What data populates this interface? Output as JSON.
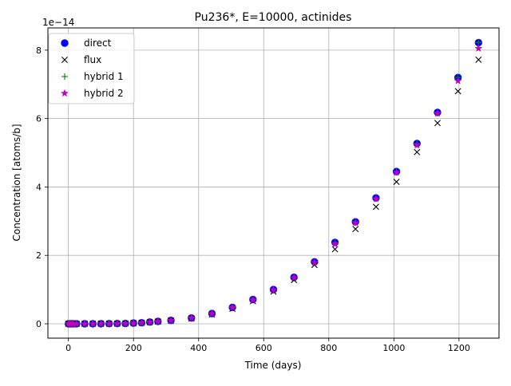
{
  "chart_data": {
    "type": "scatter",
    "title": "Pu236*, E=10000, actinides",
    "xlabel": "Time (days)",
    "ylabel": "Concentration [atoms/b]",
    "y_offset_label": "1e−14",
    "y_scale_exponent": -14,
    "xlim": [
      -63,
      1323
    ],
    "ylim": [
      -0.42,
      8.65
    ],
    "grid": true,
    "legend_position": "upper-left",
    "xticks": [
      0,
      200,
      400,
      600,
      800,
      1000,
      1200
    ],
    "xtick_labels": [
      "0",
      "200",
      "400",
      "600",
      "800",
      "1000",
      "1200"
    ],
    "yticks": [
      0,
      2,
      4,
      6,
      8
    ],
    "ytick_labels": [
      "0",
      "2",
      "4",
      "6",
      "8"
    ],
    "x": [
      0,
      5,
      10,
      15,
      25,
      50,
      75,
      100,
      125,
      150,
      175,
      200,
      225,
      250,
      275,
      315,
      378,
      441,
      504,
      567,
      630,
      693,
      756,
      819,
      882,
      945,
      1008,
      1071,
      1134,
      1197,
      1260
    ],
    "series": [
      {
        "name": "direct",
        "marker": "circle",
        "color": "#0000ff",
        "values": [
          0,
          0,
          0,
          0,
          0,
          0,
          0.001,
          0.002,
          0.003,
          0.006,
          0.01,
          0.02,
          0.03,
          0.05,
          0.07,
          0.1,
          0.17,
          0.3,
          0.48,
          0.71,
          1.0,
          1.36,
          1.81,
          2.38,
          2.98,
          3.68,
          4.45,
          5.27,
          6.18,
          7.2,
          8.22
        ]
      },
      {
        "name": "flux",
        "marker": "x",
        "color": "#000000",
        "values": [
          0,
          0,
          0,
          0,
          0,
          0,
          0.001,
          0.002,
          0.003,
          0.005,
          0.009,
          0.018,
          0.027,
          0.045,
          0.065,
          0.09,
          0.15,
          0.27,
          0.44,
          0.66,
          0.94,
          1.28,
          1.72,
          2.18,
          2.77,
          3.42,
          4.15,
          5.02,
          5.87,
          6.8,
          7.72
        ]
      },
      {
        "name": "hybrid 1",
        "marker": "plus",
        "color": "#008000",
        "values": [
          0,
          0,
          0,
          0,
          0,
          0,
          0.001,
          0.002,
          0.003,
          0.006,
          0.01,
          0.02,
          0.03,
          0.05,
          0.07,
          0.1,
          0.17,
          0.3,
          0.48,
          0.71,
          1.0,
          1.36,
          1.81,
          2.38,
          2.98,
          3.68,
          4.45,
          5.27,
          6.18,
          7.2,
          8.22
        ]
      },
      {
        "name": "hybrid 2",
        "marker": "star",
        "color": "#bf00bf",
        "values": [
          0,
          0,
          0,
          0,
          0,
          0,
          0.001,
          0.002,
          0.003,
          0.006,
          0.01,
          0.02,
          0.03,
          0.05,
          0.07,
          0.1,
          0.17,
          0.3,
          0.48,
          0.7,
          0.99,
          1.35,
          1.79,
          2.33,
          2.95,
          3.65,
          4.42,
          5.22,
          6.15,
          7.1,
          8.05
        ]
      }
    ]
  }
}
